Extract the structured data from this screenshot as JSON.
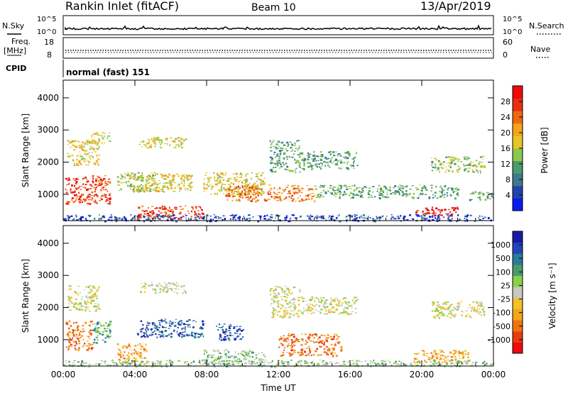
{
  "header": {
    "title": "Rankin Inlet (fitACF)",
    "beam": "Beam 10",
    "date": "13/Apr/2019"
  },
  "noise_panel": {
    "left_label": "N.Sky",
    "right_label": "N.Search",
    "left_ticks": [
      "10^5",
      "10^0"
    ],
    "right_ticks": [
      "10^5",
      "10^0"
    ]
  },
  "freq_panel": {
    "left_label_1": "Freq.",
    "left_label_2": "[MHz]",
    "right_label": "Nave",
    "left_ticks": [
      "18",
      "8"
    ],
    "right_ticks": [
      "60",
      "0"
    ]
  },
  "cpid_panel": {
    "label": "CPID",
    "mode": "normal (fast) 151"
  },
  "colors": {
    "power_scale": [
      "#0a1aee",
      "#2244aa",
      "#3c7a8c",
      "#4c9a6a",
      "#8cc84c",
      "#e8c42a",
      "#f4a41a",
      "#ee6a10",
      "#e83010",
      "#ee0a0a"
    ],
    "velocity_scale": [
      "#ee0a0a",
      "#e83a10",
      "#ee7412",
      "#f4a41a",
      "#f4c02a",
      "#c8c8c0",
      "#8ad04a",
      "#4c9a6a",
      "#2a7a9a",
      "#2244bb",
      "#1a1aaa"
    ]
  },
  "chart_data": [
    {
      "type": "heatmap",
      "name_hint": "power",
      "ylabel": "Slant Range [km]",
      "xlabel": "",
      "ylim": [
        180,
        4550
      ],
      "xlim_hours": [
        0,
        24
      ],
      "yticks": [
        "1000",
        "2000",
        "3000",
        "4000"
      ],
      "xticks": [
        "00:00",
        "04:00",
        "08:00",
        "12:00",
        "16:00",
        "20:00",
        "00:00"
      ],
      "colorbar": {
        "label": "Power [dB]",
        "ticks": [
          "4",
          "8",
          "12",
          "16",
          "20",
          "24",
          "28"
        ]
      },
      "regions": [
        {
          "x": [
            0.1,
            2.6
          ],
          "y": [
            700,
            1600
          ],
          "level": 8
        },
        {
          "x": [
            0.2,
            2.0
          ],
          "y": [
            1900,
            2700
          ],
          "level": 5
        },
        {
          "x": [
            1.4,
            2.6
          ],
          "y": [
            2600,
            2950
          ],
          "level": 5
        },
        {
          "x": [
            3.0,
            5.2
          ],
          "y": [
            1100,
            1700
          ],
          "level": 4
        },
        {
          "x": [
            3.8,
            7.2
          ],
          "y": [
            1100,
            1650
          ],
          "level": 5
        },
        {
          "x": [
            4.2,
            6.8
          ],
          "y": [
            2450,
            2800
          ],
          "level": 5
        },
        {
          "x": [
            4.0,
            7.8
          ],
          "y": [
            250,
            650
          ],
          "level": 8
        },
        {
          "x": [
            7.8,
            11.2
          ],
          "y": [
            1000,
            1700
          ],
          "level": 5
        },
        {
          "x": [
            9.0,
            14.0
          ],
          "y": [
            800,
            1300
          ],
          "level": 7
        },
        {
          "x": [
            11.5,
            13.2
          ],
          "y": [
            1700,
            2700
          ],
          "level": 3
        },
        {
          "x": [
            13.2,
            16.4
          ],
          "y": [
            1800,
            2350
          ],
          "level": 3
        },
        {
          "x": [
            14.0,
            22.0
          ],
          "y": [
            900,
            1300
          ],
          "level": 3
        },
        {
          "x": [
            19.6,
            22.0
          ],
          "y": [
            350,
            620
          ],
          "level": 9
        },
        {
          "x": [
            20.5,
            23.5
          ],
          "y": [
            1700,
            2200
          ],
          "level": 4
        },
        {
          "x": [
            22.5,
            24.0
          ],
          "y": [
            800,
            1100
          ],
          "level": 3
        },
        {
          "x": [
            0.0,
            24.0
          ],
          "y": [
            180,
            380
          ],
          "level": 1
        }
      ]
    },
    {
      "type": "heatmap",
      "name_hint": "velocity",
      "ylabel": "Slant Range [km]",
      "xlabel": "Time UT",
      "ylim": [
        180,
        4550
      ],
      "xlim_hours": [
        0,
        24
      ],
      "yticks": [
        "1000",
        "2000",
        "3000",
        "4000"
      ],
      "xticks": [
        "00:00",
        "04:00",
        "08:00",
        "12:00",
        "16:00",
        "20:00",
        "00:00"
      ],
      "colorbar": {
        "label": "Velocity [m s⁻¹]",
        "ticks": [
          "1000",
          "500",
          "100",
          "25",
          "-25",
          "-100",
          "-500",
          "-1000"
        ]
      },
      "regions": [
        {
          "x": [
            0.1,
            1.6
          ],
          "y": [
            700,
            1600
          ],
          "level": 2
        },
        {
          "x": [
            1.6,
            2.6
          ],
          "y": [
            900,
            1600
          ],
          "level": 7
        },
        {
          "x": [
            0.2,
            2.0
          ],
          "y": [
            1900,
            2700
          ],
          "level": 5
        },
        {
          "x": [
            3.0,
            4.6
          ],
          "y": [
            250,
            900
          ],
          "level": 3
        },
        {
          "x": [
            4.0,
            7.8
          ],
          "y": [
            1100,
            1650
          ],
          "level": 9
        },
        {
          "x": [
            4.2,
            6.8
          ],
          "y": [
            2450,
            2800
          ],
          "level": 5
        },
        {
          "x": [
            7.8,
            11.2
          ],
          "y": [
            250,
            700
          ],
          "level": 6
        },
        {
          "x": [
            8.5,
            10.0
          ],
          "y": [
            1000,
            1500
          ],
          "level": 9
        },
        {
          "x": [
            11.5,
            13.2
          ],
          "y": [
            1700,
            2700
          ],
          "level": 5
        },
        {
          "x": [
            12.0,
            15.5
          ],
          "y": [
            500,
            1200
          ],
          "level": 2
        },
        {
          "x": [
            13.2,
            16.4
          ],
          "y": [
            1800,
            2350
          ],
          "level": 5
        },
        {
          "x": [
            19.5,
            22.6
          ],
          "y": [
            300,
            700
          ],
          "level": 3
        },
        {
          "x": [
            20.5,
            23.5
          ],
          "y": [
            1700,
            2200
          ],
          "level": 5
        },
        {
          "x": [
            0.0,
            24.0
          ],
          "y": [
            180,
            380
          ],
          "level": 6
        }
      ]
    }
  ]
}
